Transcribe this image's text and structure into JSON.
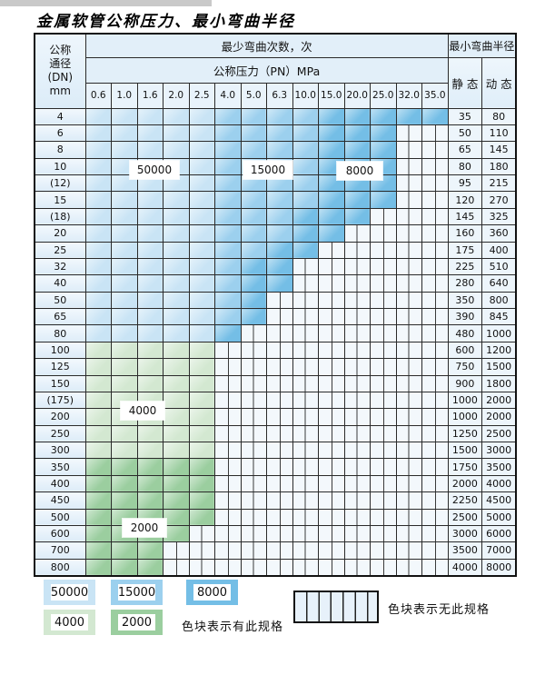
{
  "title": "金属软管公称压力、最小弯曲半径",
  "table": {
    "dn_header": [
      "公称",
      "通径",
      "(DN)",
      "mm"
    ],
    "bend_cycles_header": "最少弯曲次数，次",
    "pressure_header": "公称压力（PN）MPa",
    "pn_values": [
      "0.6",
      "1.0",
      "1.6",
      "2.0",
      "2.5",
      "4.0",
      "5.0",
      "6.3",
      "10.0",
      "15.0",
      "20.0",
      "25.0",
      "32.0",
      "35.0"
    ],
    "radius_header": "最小弯曲半径",
    "static_label": "静 态",
    "dynamic_label": "动 态",
    "band_meaning": {
      "b1": "50000",
      "b2": "15000",
      "b3": "8000",
      "g1": "4000",
      "g2": "2000",
      "x": "无此规格"
    },
    "rows": [
      {
        "dn": "4",
        "static": "35",
        "dynamic": "80",
        "bands": [
          [
            "b1",
            1,
            5
          ],
          [
            "b2",
            6,
            9
          ],
          [
            "b3",
            10,
            14
          ]
        ]
      },
      {
        "dn": "6",
        "static": "50",
        "dynamic": "110",
        "bands": [
          [
            "b1",
            1,
            5
          ],
          [
            "b2",
            6,
            9
          ],
          [
            "b3",
            10,
            12
          ]
        ]
      },
      {
        "dn": "8",
        "static": "65",
        "dynamic": "145",
        "bands": [
          [
            "b1",
            1,
            5
          ],
          [
            "b2",
            6,
            9
          ],
          [
            "b3",
            10,
            12
          ]
        ]
      },
      {
        "dn": "10",
        "static": "80",
        "dynamic": "180",
        "bands": [
          [
            "b1",
            1,
            5
          ],
          [
            "b2",
            6,
            9
          ],
          [
            "b3",
            10,
            12
          ]
        ]
      },
      {
        "dn": "(12)",
        "static": "95",
        "dynamic": "215",
        "bands": [
          [
            "b1",
            1,
            5
          ],
          [
            "b2",
            6,
            9
          ],
          [
            "b3",
            10,
            12
          ]
        ]
      },
      {
        "dn": "15",
        "static": "120",
        "dynamic": "270",
        "bands": [
          [
            "b1",
            1,
            5
          ],
          [
            "b2",
            6,
            9
          ],
          [
            "b3",
            10,
            12
          ]
        ]
      },
      {
        "dn": "(18)",
        "static": "145",
        "dynamic": "325",
        "bands": [
          [
            "b1",
            1,
            5
          ],
          [
            "b2",
            6,
            8
          ],
          [
            "b3",
            9,
            11
          ]
        ]
      },
      {
        "dn": "20",
        "static": "160",
        "dynamic": "360",
        "bands": [
          [
            "b1",
            1,
            5
          ],
          [
            "b2",
            6,
            8
          ],
          [
            "b3",
            9,
            10
          ]
        ]
      },
      {
        "dn": "25",
        "static": "175",
        "dynamic": "400",
        "bands": [
          [
            "b1",
            1,
            5
          ],
          [
            "b2",
            6,
            7
          ],
          [
            "b3",
            8,
            9
          ]
        ]
      },
      {
        "dn": "32",
        "static": "225",
        "dynamic": "510",
        "bands": [
          [
            "b1",
            1,
            5
          ],
          [
            "b2",
            6,
            6
          ],
          [
            "b3",
            7,
            8
          ]
        ]
      },
      {
        "dn": "40",
        "static": "280",
        "dynamic": "640",
        "bands": [
          [
            "b1",
            1,
            5
          ],
          [
            "b2",
            6,
            6
          ],
          [
            "b3",
            7,
            8
          ]
        ]
      },
      {
        "dn": "50",
        "static": "350",
        "dynamic": "800",
        "bands": [
          [
            "b1",
            1,
            5
          ],
          [
            "b2",
            6,
            6
          ],
          [
            "b3",
            7,
            7
          ]
        ]
      },
      {
        "dn": "65",
        "static": "390",
        "dynamic": "845",
        "bands": [
          [
            "b1",
            1,
            5
          ],
          [
            "b2",
            6,
            6
          ],
          [
            "b3",
            7,
            7
          ]
        ]
      },
      {
        "dn": "80",
        "static": "480",
        "dynamic": "1000",
        "bands": [
          [
            "b1",
            1,
            5
          ],
          [
            "b3",
            6,
            6
          ]
        ]
      },
      {
        "dn": "100",
        "static": "600",
        "dynamic": "1200",
        "bands": [
          [
            "g1",
            1,
            5
          ]
        ]
      },
      {
        "dn": "125",
        "static": "750",
        "dynamic": "1500",
        "bands": [
          [
            "g1",
            1,
            5
          ]
        ]
      },
      {
        "dn": "150",
        "static": "900",
        "dynamic": "1800",
        "bands": [
          [
            "g1",
            1,
            5
          ]
        ]
      },
      {
        "dn": "(175)",
        "static": "1000",
        "dynamic": "2000",
        "bands": [
          [
            "g1",
            1,
            5
          ]
        ]
      },
      {
        "dn": "200",
        "static": "1000",
        "dynamic": "2000",
        "bands": [
          [
            "g1",
            1,
            5
          ]
        ]
      },
      {
        "dn": "250",
        "static": "1250",
        "dynamic": "2500",
        "bands": [
          [
            "g1",
            1,
            5
          ]
        ]
      },
      {
        "dn": "300",
        "static": "1500",
        "dynamic": "3000",
        "bands": [
          [
            "g1",
            1,
            5
          ]
        ]
      },
      {
        "dn": "350",
        "static": "1750",
        "dynamic": "3500",
        "bands": [
          [
            "g2",
            1,
            5
          ]
        ]
      },
      {
        "dn": "400",
        "static": "2000",
        "dynamic": "4000",
        "bands": [
          [
            "g2",
            1,
            5
          ]
        ]
      },
      {
        "dn": "450",
        "static": "2250",
        "dynamic": "4500",
        "bands": [
          [
            "g2",
            1,
            5
          ]
        ]
      },
      {
        "dn": "500",
        "static": "2500",
        "dynamic": "5000",
        "bands": [
          [
            "g2",
            1,
            5
          ]
        ]
      },
      {
        "dn": "600",
        "static": "3000",
        "dynamic": "6000",
        "bands": [
          [
            "g2",
            1,
            4
          ]
        ]
      },
      {
        "dn": "700",
        "static": "3500",
        "dynamic": "7000",
        "bands": [
          [
            "g2",
            1,
            3
          ]
        ]
      },
      {
        "dn": "800",
        "static": "4000",
        "dynamic": "8000",
        "bands": [
          [
            "g2",
            1,
            3
          ]
        ]
      }
    ]
  },
  "overlay_labels": [
    {
      "text": "50000",
      "band": "b1"
    },
    {
      "text": "15000",
      "band": "b2"
    },
    {
      "text": "8000",
      "band": "b3"
    },
    {
      "text": "4000",
      "band": "g1"
    },
    {
      "text": "2000",
      "band": "g2"
    }
  ],
  "legend": {
    "items": [
      {
        "label": "50000",
        "band": "b1"
      },
      {
        "label": "15000",
        "band": "b2"
      },
      {
        "label": "8000",
        "band": "b3"
      },
      {
        "label": "4000",
        "band": "g1"
      },
      {
        "label": "2000",
        "band": "g2"
      }
    ],
    "note_available": "色块表示有此规格",
    "note_unavailable": "色块表示无此规格"
  },
  "colors": {
    "b1": "#c9e4f5",
    "b2": "#9cd0ee",
    "b3": "#74bee6",
    "g1": "#d3e8d1",
    "g2": "#9bce9f",
    "stripe_bg": "#f3f8fc"
  }
}
